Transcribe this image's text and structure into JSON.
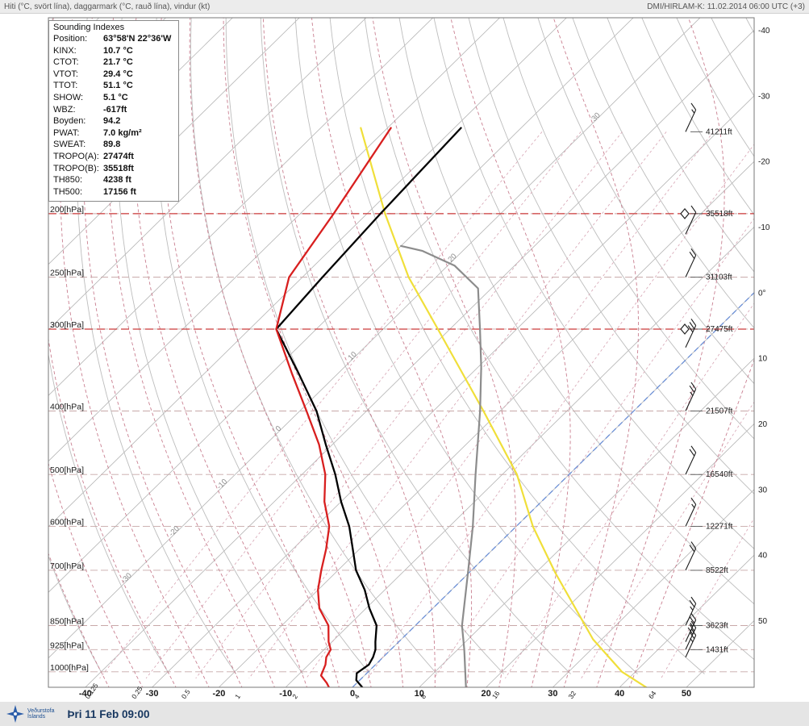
{
  "header": {
    "left_label": "Hiti (°C, svört lína), daggarmark (°C, rauð lína), vindur (kt)",
    "right_label": "DMI/HIRLAM-K: 11.02.2014 06:00 UTC (+3)"
  },
  "sounding_indexes": {
    "title": "Sounding Indexes",
    "rows": [
      {
        "label": "Position:",
        "value": "63°58'N 22°36'W"
      },
      {
        "label": "KINX:",
        "value": "10.7 °C"
      },
      {
        "label": "CTOT:",
        "value": "21.7 °C"
      },
      {
        "label": "VTOT:",
        "value": "29.4 °C"
      },
      {
        "label": "TTOT:",
        "value": "51.1 °C"
      },
      {
        "label": "SHOW:",
        "value": "5.1 °C"
      },
      {
        "label": "WBZ:",
        "value": "-617ft"
      },
      {
        "label": "Boyden:",
        "value": "94.2"
      },
      {
        "label": "PWAT:",
        "value": "7.0 kg/m²"
      },
      {
        "label": "SWEAT:",
        "value": "89.8"
      },
      {
        "label": "TROPO(A):",
        "value": "27474ft"
      },
      {
        "label": "TROPO(B):",
        "value": "35518ft"
      },
      {
        "label": "TH850:",
        "value": "4238 ft"
      },
      {
        "label": "TH500:",
        "value": "17156 ft"
      }
    ]
  },
  "footer": {
    "org_name_line1": "Veðurstofa",
    "org_name_line2": "Íslands",
    "datetime_label": "Þri 11 Feb 09:00"
  },
  "chart_data": {
    "type": "skewt_log_p_sounding",
    "pressure_unit": "hPa",
    "temperature_unit": "°C",
    "pressure_axis": [
      {
        "p": 200,
        "label": "200[hPa]"
      },
      {
        "p": 250,
        "label": "250[hPa]"
      },
      {
        "p": 300,
        "label": "300[hPa]"
      },
      {
        "p": 400,
        "label": "400[hPa]"
      },
      {
        "p": 500,
        "label": "500[hPa]"
      },
      {
        "p": 600,
        "label": "600[hPa]"
      },
      {
        "p": 700,
        "label": "700[hPa]"
      },
      {
        "p": 850,
        "label": "850[hPa]"
      },
      {
        "p": 925,
        "label": "925[hPa]"
      },
      {
        "p": 1000,
        "label": "1000[hPa]"
      }
    ],
    "altitude_axis": [
      {
        "p": 150,
        "label": "41211ft"
      },
      {
        "p": 200,
        "label": "35518ft"
      },
      {
        "p": 250,
        "label": "31103ft"
      },
      {
        "p": 300,
        "label": "27475ft"
      },
      {
        "p": 400,
        "label": "21507ft"
      },
      {
        "p": 500,
        "label": "16540ft"
      },
      {
        "p": 600,
        "label": "12271ft"
      },
      {
        "p": 700,
        "label": "8522ft"
      },
      {
        "p": 850,
        "label": "3623ft"
      },
      {
        "p": 925,
        "label": "1431ft"
      }
    ],
    "bottom_temp_ticks": [
      -40,
      -30,
      -20,
      -10,
      0,
      10,
      20,
      30,
      40,
      50
    ],
    "right_temp_labels": [
      {
        "t": -40,
        "label": "-40"
      },
      {
        "t": -30,
        "label": "-30"
      },
      {
        "t": -20,
        "label": "-20"
      },
      {
        "t": -10,
        "label": "-10"
      },
      {
        "t": 0,
        "label": "0°"
      },
      {
        "t": 10,
        "label": "10"
      },
      {
        "t": 20,
        "label": "20"
      },
      {
        "t": 30,
        "label": "30"
      },
      {
        "t": 40,
        "label": "40"
      },
      {
        "t": 50,
        "label": "50"
      }
    ],
    "mixing_ratio_g_per_kg": [
      0.125,
      0.25,
      0.5,
      1,
      2,
      4,
      8,
      16,
      32,
      64
    ],
    "isotherms": {
      "min": -150,
      "max": 50,
      "step": 10,
      "highlight_zero_dashed_blue": true
    },
    "dry_adiabats": {
      "min": -40,
      "max": 170,
      "step": 10
    },
    "moist_adiabats": {
      "min": -40,
      "max": 40,
      "step": 5,
      "labeled_values": [
        -30,
        -20,
        -10,
        0,
        10,
        20,
        30
      ],
      "label_crossing_temp_c": -50
    },
    "tropopause_levels_hpa": [
      200,
      300
    ],
    "series": {
      "temperature": {
        "name": "Hiti",
        "color": "#000000",
        "points": [
          [
            1056,
            1.5
          ],
          [
            1030,
            -0.5
          ],
          [
            1005,
            -1.5
          ],
          [
            975,
            -1.0
          ],
          [
            950,
            -1.5
          ],
          [
            925,
            -2.3
          ],
          [
            900,
            -3.5
          ],
          [
            850,
            -5.8
          ],
          [
            800,
            -9.5
          ],
          [
            750,
            -13.0
          ],
          [
            700,
            -17.3
          ],
          [
            650,
            -21.0
          ],
          [
            600,
            -25.0
          ],
          [
            550,
            -30.0
          ],
          [
            500,
            -35.0
          ],
          [
            450,
            -41.0
          ],
          [
            400,
            -47.5
          ],
          [
            350,
            -56.0
          ],
          [
            300,
            -66.0
          ],
          [
            250,
            -67.0
          ],
          [
            200,
            -68.0
          ],
          [
            148,
            -69.0
          ]
        ]
      },
      "dewpoint": {
        "name": "Daggarmark",
        "color": "#d81f1f",
        "points": [
          [
            1056,
            -3.5
          ],
          [
            1040,
            -4.5
          ],
          [
            1013,
            -6.5
          ],
          [
            975,
            -7.5
          ],
          [
            950,
            -8.5
          ],
          [
            925,
            -9.0
          ],
          [
            900,
            -10.5
          ],
          [
            850,
            -13.0
          ],
          [
            800,
            -17.0
          ],
          [
            750,
            -20.0
          ],
          [
            700,
            -22.5
          ],
          [
            650,
            -25.0
          ],
          [
            600,
            -28.0
          ],
          [
            550,
            -32.5
          ],
          [
            500,
            -36.5
          ],
          [
            450,
            -42.0
          ],
          [
            400,
            -49.0
          ],
          [
            350,
            -57.0
          ],
          [
            300,
            -66.0
          ],
          [
            250,
            -72.0
          ],
          [
            200,
            -75.0
          ],
          [
            148,
            -79.5
          ]
        ]
      },
      "reference": {
        "name": "reference-profile",
        "color": "#8c8c8c",
        "points": [
          [
            1056,
            17.0
          ],
          [
            925,
            11.0
          ],
          [
            850,
            7.0
          ],
          [
            700,
            -0.5
          ],
          [
            600,
            -6.5
          ],
          [
            500,
            -14.0
          ],
          [
            400,
            -23.0
          ],
          [
            343,
            -29.5
          ],
          [
            300,
            -35.5
          ],
          [
            260,
            -42.0
          ],
          [
            240,
            -49.0
          ],
          [
            228,
            -56.0
          ],
          [
            224,
            -60.0
          ]
        ]
      },
      "yellow": {
        "name": "yellow-reference-line",
        "color": "#f0df3a",
        "points": [
          [
            1056,
            44.0
          ],
          [
            1000,
            38.0
          ],
          [
            892,
            28.7
          ],
          [
            706,
            12.9
          ],
          [
            600,
            2.5
          ],
          [
            500,
            -7.8
          ],
          [
            400,
            -22.5
          ],
          [
            300,
            -41.8
          ],
          [
            250,
            -54.1
          ],
          [
            200,
            -67.3
          ],
          [
            148,
            -84.0
          ]
        ]
      }
    },
    "wind_barbs_kt": [
      {
        "p": 150,
        "kt": 15
      },
      {
        "p": 215,
        "kt": 10
      },
      {
        "p": 250,
        "kt": 20
      },
      {
        "p": 320,
        "kt": 30
      },
      {
        "p": 400,
        "kt": 25
      },
      {
        "p": 500,
        "kt": 20
      },
      {
        "p": 600,
        "kt": 15
      },
      {
        "p": 700,
        "kt": 20
      },
      {
        "p": 850,
        "kt": 25
      },
      {
        "p": 900,
        "kt": 25
      },
      {
        "p": 925,
        "kt": 30
      },
      {
        "p": 950,
        "kt": 25
      }
    ],
    "colors": {
      "temperature": "#000000",
      "dewpoint": "#d81f1f",
      "reference": "#8c8c8c",
      "yellow": "#f0df3a",
      "isotherm_gray": "#b3b3b3",
      "dry_adiabat_gray": "#bdbdbd",
      "moist_adiabat_pink": "#c97f90",
      "mixing_ratio_pink": "#d6a3b2",
      "pressure_line": "#c8a8a8",
      "tropopause_red": "#cc3b3b",
      "zero_isotherm_blue": "#6b8fd6",
      "barb_black": "#1a1a1a",
      "axis_text": "#1a1a1a",
      "adiabat_label_gray": "#8a8a8a"
    }
  }
}
